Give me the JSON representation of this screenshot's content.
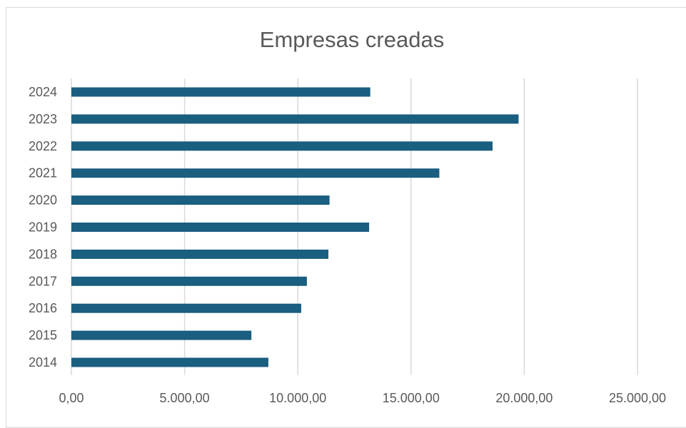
{
  "chart_data": {
    "type": "bar",
    "orientation": "horizontal",
    "title": "Empresas creadas",
    "xlabel": "",
    "ylabel": "",
    "categories": [
      "2024",
      "2023",
      "2022",
      "2021",
      "2020",
      "2019",
      "2018",
      "2017",
      "2016",
      "2015",
      "2014"
    ],
    "values": [
      13200,
      19750,
      18600,
      16250,
      11400,
      13150,
      11350,
      10400,
      10150,
      7950,
      8700
    ],
    "xlim": [
      0,
      25000
    ],
    "x_ticks": [
      "0,00",
      "5.000,00",
      "10.000,00",
      "15.000,00",
      "20.000,00",
      "25.000,00"
    ],
    "grid": true,
    "legend": "none",
    "bar_color": "#1a5e80"
  }
}
